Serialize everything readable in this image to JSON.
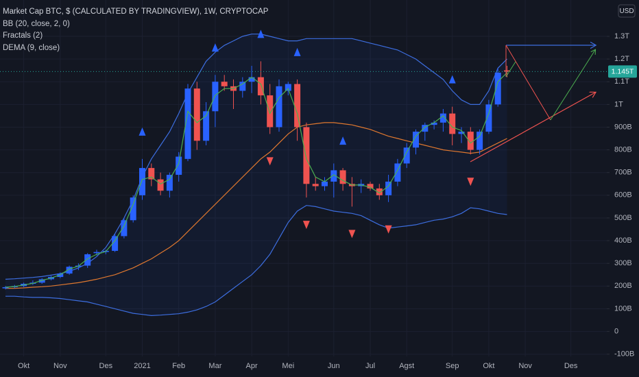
{
  "chart_data": {
    "type": "candlestick",
    "title": "Market Cap BTC, $ (CALCULATED BY TRADINGVIEW), 1W, CRYPTOCAP",
    "currency": "USD",
    "up_color": "#2962ff",
    "down_color": "#ef5350",
    "grid": true,
    "ylim": [
      -110,
      1460
    ],
    "yticks": [
      {
        "value": -100,
        "label": "-100B"
      },
      0,
      {
        "value": 100,
        "label": "100B"
      },
      {
        "value": 200,
        "label": "200B"
      },
      {
        "value": 300,
        "label": "300B"
      },
      {
        "value": 400,
        "label": "400B"
      },
      {
        "value": 500,
        "label": "500B"
      },
      {
        "value": 600,
        "label": "600B"
      },
      {
        "value": 700,
        "label": "700B"
      },
      {
        "value": 800,
        "label": "800B"
      },
      {
        "value": 900,
        "label": "900B"
      },
      {
        "value": 1000,
        "label": "1T"
      },
      {
        "value": 1100,
        "label": "1.1T"
      },
      {
        "value": 1200,
        "label": "1.2T"
      },
      {
        "value": 1300,
        "label": "1.3T"
      }
    ],
    "last_price": {
      "value": 1145,
      "label": "1.145T",
      "color": "#26a69a"
    },
    "categories": [
      null,
      null,
      "Okt",
      null,
      null,
      null,
      "Nov",
      null,
      null,
      null,
      null,
      "Des",
      null,
      null,
      null,
      "2021",
      null,
      null,
      null,
      "Feb",
      null,
      null,
      null,
      "Mar",
      null,
      null,
      null,
      "Apr",
      null,
      null,
      null,
      "Mei",
      null,
      null,
      null,
      null,
      "Jun",
      null,
      null,
      null,
      "Jul",
      null,
      null,
      null,
      "Agst",
      null,
      null,
      null,
      null,
      "Sep",
      null,
      null,
      null,
      "Okt",
      null,
      null,
      null,
      "Nov",
      null,
      null,
      null,
      null,
      "Des",
      null,
      null,
      null
    ],
    "open": [
      190,
      195,
      200,
      210,
      215,
      230,
      240,
      255,
      285,
      290,
      345,
      350,
      355,
      420,
      490,
      600,
      720,
      670,
      620,
      690,
      760,
      1070,
      840,
      970,
      1100,
      1080,
      1060,
      1100,
      1120,
      1040,
      900,
      1060,
      1090,
      900,
      650,
      640,
      660,
      710,
      650,
      640,
      650,
      630,
      600,
      660,
      740,
      810,
      880,
      910,
      920,
      960,
      870,
      880,
      800,
      880,
      1000,
      1150,
      null,
      null,
      null,
      null,
      null,
      null,
      null,
      null,
      null,
      null
    ],
    "high": [
      200,
      205,
      215,
      225,
      235,
      245,
      260,
      290,
      300,
      345,
      360,
      360,
      430,
      500,
      600,
      760,
      740,
      700,
      700,
      790,
      1090,
      1100,
      1010,
      1130,
      1130,
      1110,
      1120,
      1170,
      1190,
      1090,
      1110,
      1100,
      1110,
      920,
      680,
      680,
      740,
      720,
      680,
      670,
      660,
      650,
      690,
      760,
      830,
      890,
      920,
      930,
      980,
      990,
      900,
      900,
      890,
      1020,
      1160,
      1170,
      null,
      null,
      null,
      null,
      null,
      null,
      null,
      null,
      null,
      null
    ],
    "low": [
      185,
      190,
      195,
      205,
      210,
      225,
      235,
      250,
      270,
      280,
      335,
      340,
      350,
      410,
      480,
      580,
      640,
      600,
      590,
      660,
      750,
      800,
      820,
      900,
      1060,
      980,
      1030,
      1050,
      1000,
      870,
      880,
      1040,
      840,
      590,
      620,
      620,
      590,
      620,
      550,
      610,
      620,
      580,
      570,
      640,
      720,
      780,
      840,
      890,
      880,
      820,
      830,
      780,
      780,
      870,
      990,
      1120,
      null,
      null,
      null,
      null,
      null,
      null,
      null,
      null,
      null,
      null
    ],
    "close": [
      195,
      200,
      210,
      215,
      230,
      240,
      255,
      285,
      290,
      340,
      350,
      355,
      420,
      490,
      590,
      720,
      670,
      620,
      690,
      770,
      1070,
      840,
      970,
      1100,
      1080,
      1060,
      1100,
      1120,
      1040,
      900,
      1080,
      1090,
      900,
      650,
      640,
      660,
      710,
      650,
      640,
      650,
      630,
      600,
      660,
      740,
      810,
      880,
      910,
      920,
      960,
      870,
      880,
      800,
      880,
      1000,
      1140,
      1145,
      null,
      null,
      null,
      null,
      null,
      null,
      null,
      null,
      null,
      null
    ],
    "indicators": [
      {
        "name": "BB (20, close, 2, 0)",
        "color": "#3d6ee0",
        "basis_color": "#e0782f",
        "upper": [
          230,
          232,
          235,
          238,
          242,
          248,
          255,
          265,
          280,
          300,
          330,
          370,
          430,
          500,
          580,
          680,
          760,
          820,
          880,
          960,
          1050,
          1120,
          1190,
          1230,
          1260,
          1280,
          1300,
          1310,
          1310,
          1300,
          1290,
          1280,
          1280,
          1290,
          1290,
          1290,
          1290,
          1290,
          1290,
          1280,
          1270,
          1260,
          1250,
          1240,
          1220,
          1200,
          1170,
          1140,
          1110,
          1060,
          1020,
          1000,
          1000,
          1060,
          1160,
          1200,
          null,
          null,
          null,
          null,
          null,
          null,
          null,
          null,
          null,
          null
        ],
        "basis": [
          190,
          190,
          192,
          195,
          197,
          200,
          205,
          210,
          215,
          222,
          230,
          240,
          250,
          265,
          280,
          300,
          320,
          345,
          370,
          400,
          440,
          480,
          520,
          560,
          600,
          640,
          680,
          720,
          760,
          790,
          830,
          870,
          900,
          910,
          915,
          920,
          920,
          915,
          910,
          900,
          890,
          875,
          860,
          850,
          840,
          830,
          820,
          810,
          800,
          795,
          790,
          785,
          790,
          810,
          830,
          850,
          null,
          null,
          null,
          null,
          null,
          null,
          null,
          null,
          null,
          null
        ],
        "lower": [
          155,
          155,
          152,
          150,
          150,
          148,
          145,
          140,
          135,
          130,
          120,
          110,
          100,
          90,
          80,
          75,
          70,
          72,
          75,
          78,
          85,
          95,
          110,
          130,
          160,
          190,
          220,
          250,
          290,
          340,
          410,
          480,
          530,
          555,
          550,
          540,
          530,
          525,
          520,
          510,
          490,
          470,
          455,
          460,
          465,
          470,
          480,
          490,
          495,
          505,
          520,
          545,
          540,
          530,
          520,
          515,
          null,
          null,
          null,
          null,
          null,
          null,
          null,
          null,
          null,
          null
        ]
      },
      {
        "name": "Fractals (2)",
        "up_color": "#2962ff",
        "down_color": "#ef5350",
        "up": [
          null,
          null,
          null,
          null,
          null,
          null,
          null,
          null,
          null,
          null,
          null,
          null,
          null,
          null,
          null,
          760,
          null,
          null,
          null,
          null,
          null,
          null,
          null,
          1130,
          null,
          null,
          null,
          null,
          1190,
          null,
          null,
          null,
          1110,
          null,
          null,
          null,
          null,
          720,
          null,
          null,
          null,
          null,
          null,
          null,
          null,
          null,
          null,
          null,
          null,
          990,
          null,
          null,
          null,
          null,
          null,
          null,
          null,
          null,
          null,
          null,
          null,
          null,
          null,
          null,
          null,
          null
        ],
        "down": [
          null,
          null,
          null,
          null,
          null,
          null,
          null,
          null,
          null,
          null,
          null,
          null,
          null,
          null,
          null,
          null,
          null,
          null,
          null,
          null,
          null,
          null,
          null,
          null,
          null,
          null,
          null,
          null,
          null,
          870,
          null,
          null,
          null,
          590,
          null,
          null,
          null,
          null,
          550,
          null,
          null,
          null,
          570,
          null,
          null,
          null,
          null,
          null,
          null,
          null,
          null,
          780,
          null,
          null,
          null,
          null,
          null,
          null,
          null,
          null,
          null,
          null,
          null,
          null,
          null,
          null
        ]
      },
      {
        "name": "DEMA (9, close)",
        "color": "#4caf50",
        "values": [
          195,
          198,
          205,
          212,
          225,
          235,
          250,
          275,
          288,
          320,
          340,
          352,
          400,
          465,
          560,
          670,
          680,
          650,
          670,
          740,
          970,
          920,
          950,
          1040,
          1070,
          1070,
          1090,
          1120,
          1090,
          960,
          1030,
          1070,
          960,
          760,
          680,
          660,
          690,
          665,
          645,
          645,
          635,
          610,
          640,
          710,
          790,
          860,
          900,
          920,
          950,
          900,
          885,
          830,
          860,
          960,
          1100,
          1140,
          null,
          null,
          null,
          null,
          null,
          null,
          null,
          null,
          null,
          null
        ]
      }
    ]
  }
}
